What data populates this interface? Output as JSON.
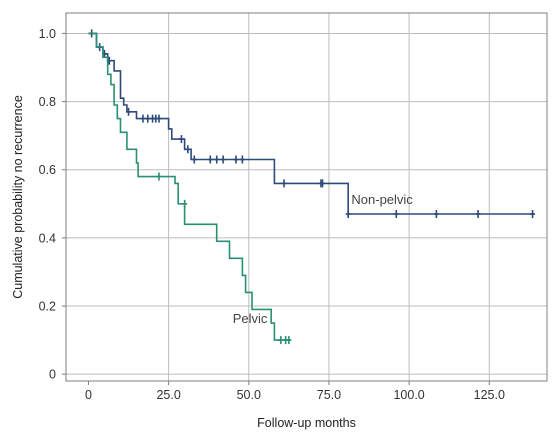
{
  "chart_data": {
    "type": "line",
    "subtype": "kaplan-meier",
    "title": "",
    "xlabel": "Follow-up months",
    "ylabel": "Cumulative probability no recurrence",
    "xlim": [
      -7,
      143
    ],
    "ylim": [
      -0.02,
      1.06
    ],
    "x_ticks": [
      0,
      25,
      50,
      75,
      100,
      125
    ],
    "x_tick_labels": [
      "0",
      "25.0",
      "50.0",
      "75.0",
      "100.0",
      "125.0"
    ],
    "y_ticks": [
      0,
      0.2,
      0.4,
      0.6,
      0.8,
      1.0
    ],
    "y_tick_labels": [
      "0",
      "0.2",
      "0.4",
      "0.6",
      "0.8",
      "1.0"
    ],
    "grid": true,
    "legend": "none",
    "series": [
      {
        "name": "Non-pelvic",
        "color": "#2e4a7a",
        "step_points": [
          [
            0,
            1.0
          ],
          [
            2.5,
            0.96
          ],
          [
            4.5,
            0.94
          ],
          [
            6,
            0.92
          ],
          [
            8,
            0.89
          ],
          [
            10,
            0.81
          ],
          [
            11,
            0.79
          ],
          [
            12,
            0.77
          ],
          [
            15,
            0.75
          ],
          [
            25,
            0.72
          ],
          [
            26,
            0.69
          ],
          [
            30,
            0.66
          ],
          [
            32,
            0.63
          ],
          [
            58,
            0.56
          ],
          [
            81,
            0.47
          ],
          [
            139,
            0.47
          ]
        ],
        "censored": [
          [
            1,
            1.0
          ],
          [
            3.5,
            0.96
          ],
          [
            5,
            0.94
          ],
          [
            6.5,
            0.92
          ],
          [
            12.5,
            0.77
          ],
          [
            17,
            0.75
          ],
          [
            18.5,
            0.75
          ],
          [
            20,
            0.75
          ],
          [
            21,
            0.75
          ],
          [
            22,
            0.75
          ],
          [
            29,
            0.69
          ],
          [
            31,
            0.66
          ],
          [
            33,
            0.63
          ],
          [
            38,
            0.63
          ],
          [
            40,
            0.63
          ],
          [
            42,
            0.63
          ],
          [
            46,
            0.63
          ],
          [
            48,
            0.63
          ],
          [
            61,
            0.56
          ],
          [
            72.5,
            0.56
          ],
          [
            73,
            0.56
          ],
          [
            81,
            0.47
          ],
          [
            96,
            0.47
          ],
          [
            108.5,
            0.47
          ],
          [
            121.5,
            0.47
          ],
          [
            138.5,
            0.47
          ]
        ]
      },
      {
        "name": "Pelvic",
        "color": "#2a8f73",
        "step_points": [
          [
            0,
            1.0
          ],
          [
            2.5,
            0.96
          ],
          [
            4.5,
            0.93
          ],
          [
            6,
            0.88
          ],
          [
            7,
            0.85
          ],
          [
            8,
            0.79
          ],
          [
            9,
            0.75
          ],
          [
            10,
            0.71
          ],
          [
            12,
            0.66
          ],
          [
            15,
            0.62
          ],
          [
            15.5,
            0.58
          ],
          [
            27,
            0.56
          ],
          [
            28,
            0.5
          ],
          [
            30,
            0.44
          ],
          [
            40,
            0.39
          ],
          [
            44,
            0.34
          ],
          [
            48,
            0.29
          ],
          [
            49,
            0.24
          ],
          [
            51,
            0.19
          ],
          [
            57,
            0.15
          ],
          [
            58,
            0.1
          ],
          [
            63,
            0.1
          ]
        ],
        "censored": [
          [
            22,
            0.58
          ],
          [
            30,
            0.5
          ],
          [
            60,
            0.1
          ],
          [
            61.5,
            0.1
          ],
          [
            62.5,
            0.1
          ]
        ]
      }
    ],
    "annotations": [
      {
        "text": "Non-pelvic",
        "x": 82,
        "y": 0.5
      },
      {
        "text": "Pelvic",
        "x": 45,
        "y": 0.15
      }
    ]
  }
}
